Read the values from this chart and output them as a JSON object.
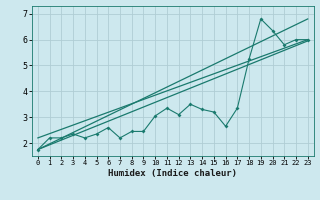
{
  "xlabel": "Humidex (Indice chaleur)",
  "bg_color": "#cde8ee",
  "grid_color": "#b0cdd4",
  "line_color": "#1a7a6e",
  "xlim": [
    -0.5,
    23.5
  ],
  "ylim": [
    1.5,
    7.3
  ],
  "yticks": [
    2,
    3,
    4,
    5,
    6,
    7
  ],
  "xticks": [
    0,
    1,
    2,
    3,
    4,
    5,
    6,
    7,
    8,
    9,
    10,
    11,
    12,
    13,
    14,
    15,
    16,
    17,
    18,
    19,
    20,
    21,
    22,
    23
  ],
  "data_x": [
    0,
    1,
    2,
    3,
    4,
    5,
    6,
    7,
    8,
    9,
    10,
    11,
    12,
    13,
    14,
    15,
    16,
    17,
    18,
    19,
    20,
    21,
    22,
    23
  ],
  "data_y": [
    1.75,
    2.2,
    2.2,
    2.35,
    2.2,
    2.35,
    2.6,
    2.2,
    2.45,
    2.45,
    3.05,
    3.35,
    3.1,
    3.5,
    3.3,
    3.2,
    2.65,
    3.35,
    5.25,
    6.8,
    6.35,
    5.8,
    6.0,
    6.0
  ],
  "line1_x": [
    0,
    23
  ],
  "line1_y": [
    1.75,
    5.95
  ],
  "line2_x": [
    0,
    23
  ],
  "line2_y": [
    1.75,
    6.8
  ],
  "line3_x": [
    0,
    23
  ],
  "line3_y": [
    2.2,
    6.0
  ]
}
